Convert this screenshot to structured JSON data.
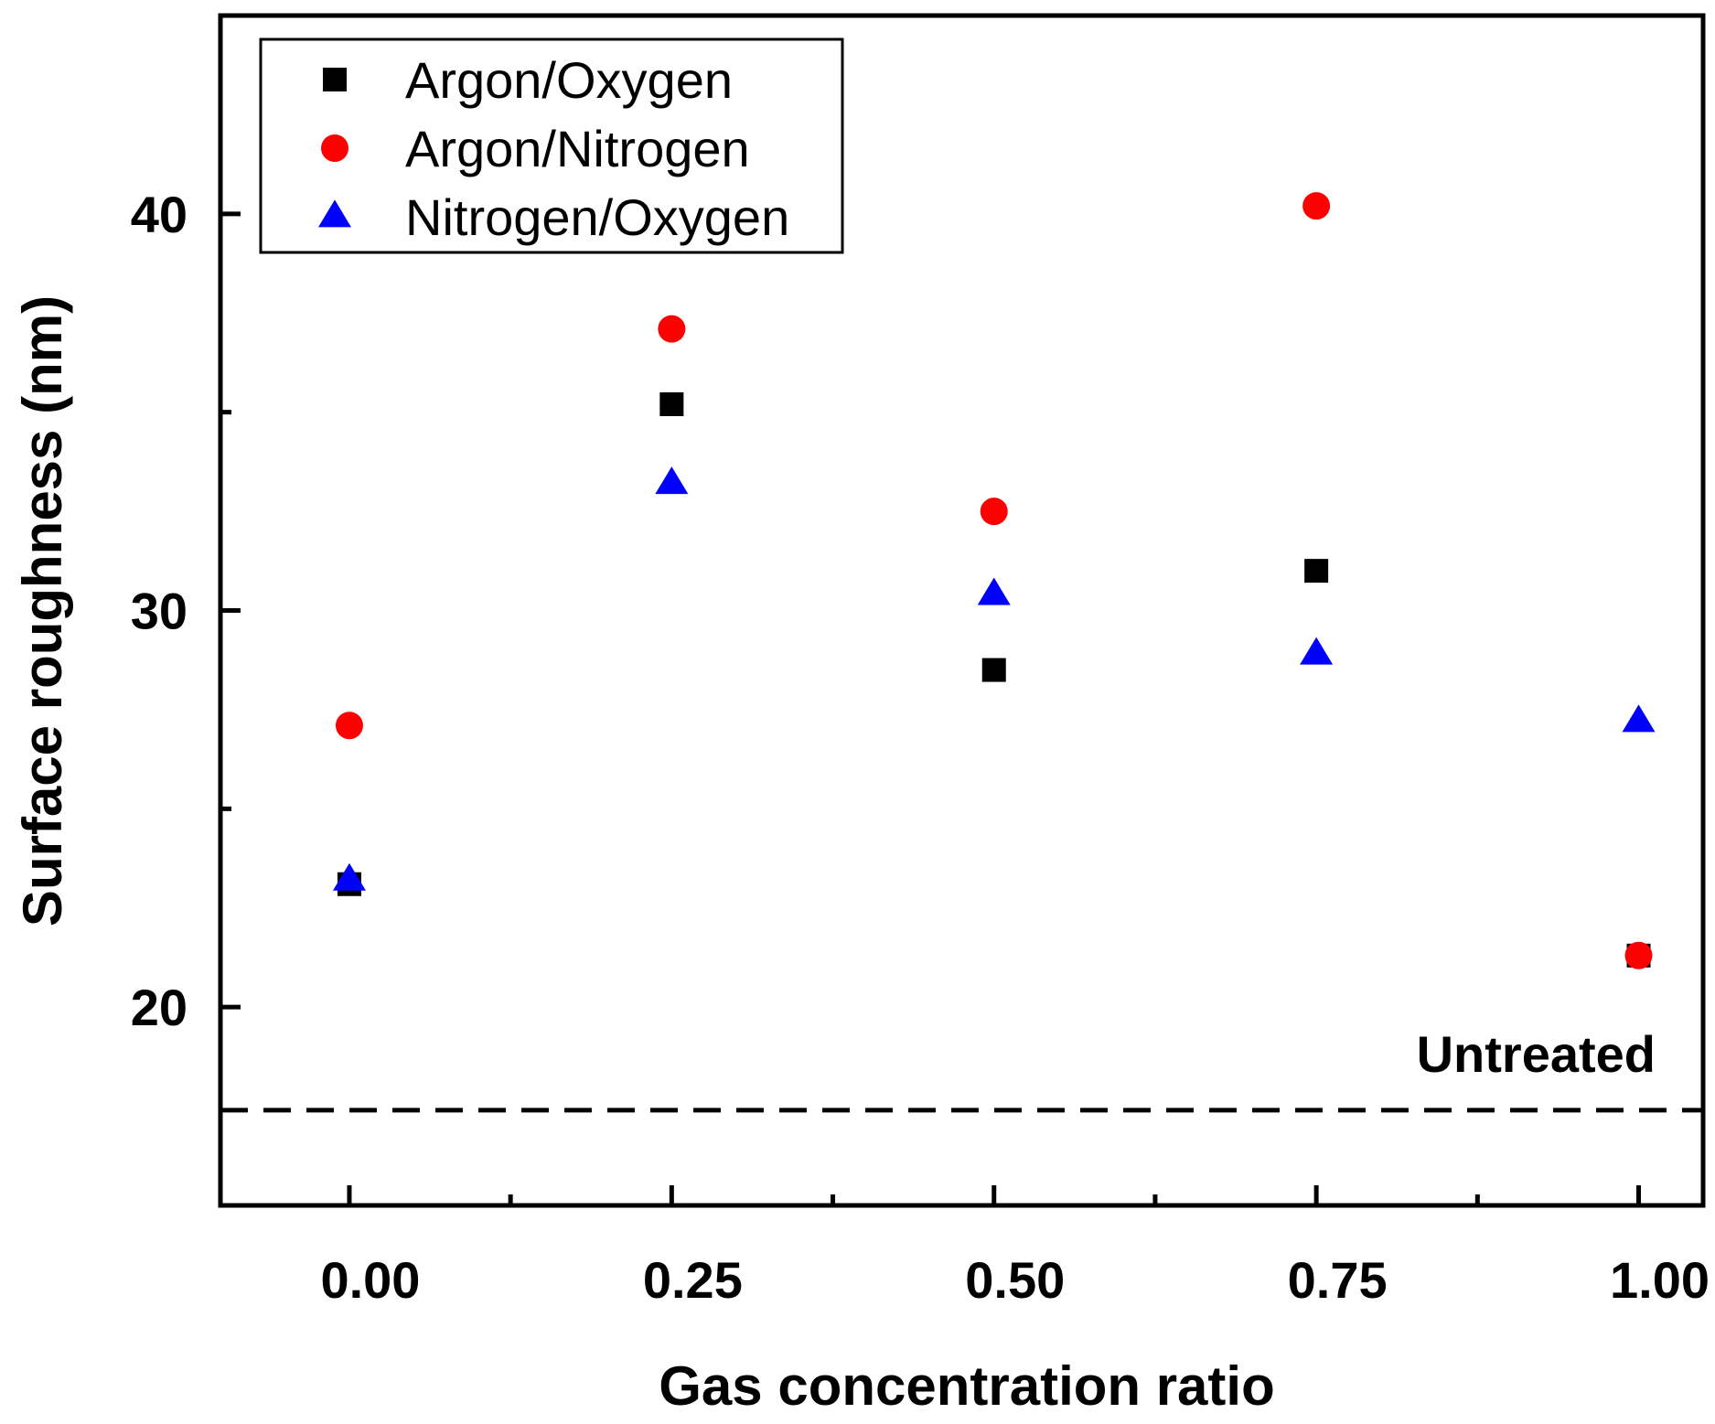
{
  "chart_data": {
    "type": "scatter",
    "title": "",
    "xlabel": "Gas concentration ratio",
    "ylabel": "Surface roughness (nm)",
    "xlim": [
      -0.1,
      1.05
    ],
    "ylim": [
      15,
      45
    ],
    "x_ticks": [
      0.0,
      0.25,
      0.5,
      0.75,
      1.0
    ],
    "x_tick_labels": [
      "0.00",
      "0.25",
      "0.50",
      "0.75",
      "1.00"
    ],
    "x_minor_ticks": [
      0.125,
      0.375,
      0.625,
      0.875
    ],
    "y_ticks": [
      20,
      30,
      40
    ],
    "y_tick_labels": [
      "20",
      "30",
      "40"
    ],
    "y_minor_ticks": [
      25,
      35
    ],
    "grid": false,
    "legend_position": "top-left",
    "series": [
      {
        "name": "Argon/Oxygen",
        "marker": "square",
        "color": "#000000",
        "x": [
          0.0,
          0.25,
          0.5,
          0.75,
          1.0
        ],
        "y": [
          23.1,
          35.2,
          28.5,
          31.0,
          21.3
        ]
      },
      {
        "name": "Argon/Nitrogen",
        "marker": "circle",
        "color": "#ff0000",
        "x": [
          0.0,
          0.25,
          0.5,
          0.75,
          1.0
        ],
        "y": [
          27.1,
          37.1,
          32.5,
          40.2,
          21.3
        ]
      },
      {
        "name": "Nitrogen/Oxygen",
        "marker": "triangle",
        "color": "#0000ff",
        "x": [
          0.0,
          0.25,
          0.5,
          0.75,
          1.0
        ],
        "y": [
          23.2,
          33.2,
          30.4,
          28.9,
          27.2
        ]
      }
    ],
    "reference_line": {
      "label": "Untreated",
      "y": 17.4,
      "style": "dashed",
      "color": "#000000"
    }
  }
}
